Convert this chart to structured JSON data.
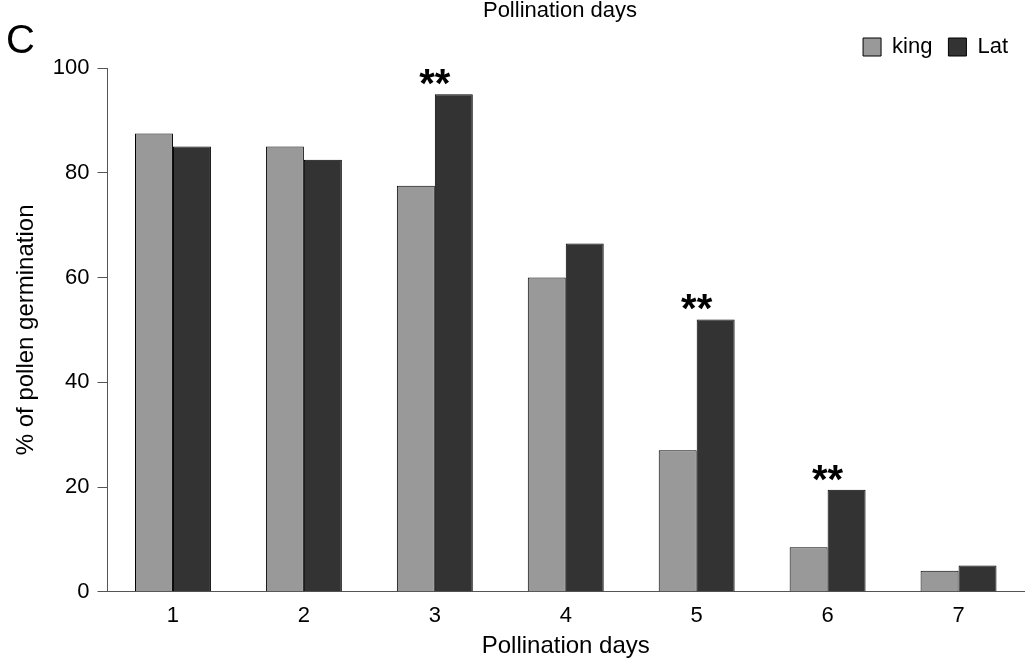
{
  "chart_data": {
    "type": "bar",
    "title": "Pollination days",
    "xlabel": "Pollination days",
    "ylabel": "% of pollen germination",
    "categories": [
      "1",
      "2",
      "3",
      "4",
      "5",
      "6",
      "7"
    ],
    "series": [
      {
        "name": "king",
        "color": "#999999",
        "values": [
          87.5,
          85,
          77.5,
          60,
          27,
          8.5,
          4
        ]
      },
      {
        "name": "Lat",
        "color": "#333333",
        "values": [
          85,
          82.5,
          95,
          66.5,
          52,
          19.5,
          5
        ]
      }
    ],
    "ylim": [
      0,
      100
    ],
    "yticks": [
      0,
      20,
      40,
      60,
      80,
      100
    ],
    "grid": false,
    "legend": "top right",
    "annotations": [
      "C",
      {
        "text": "**",
        "x": "3",
        "y": 95
      },
      {
        "text": "**",
        "x": "5",
        "y": 52
      },
      {
        "text": "**",
        "x": "6",
        "y": 19.5
      }
    ]
  }
}
